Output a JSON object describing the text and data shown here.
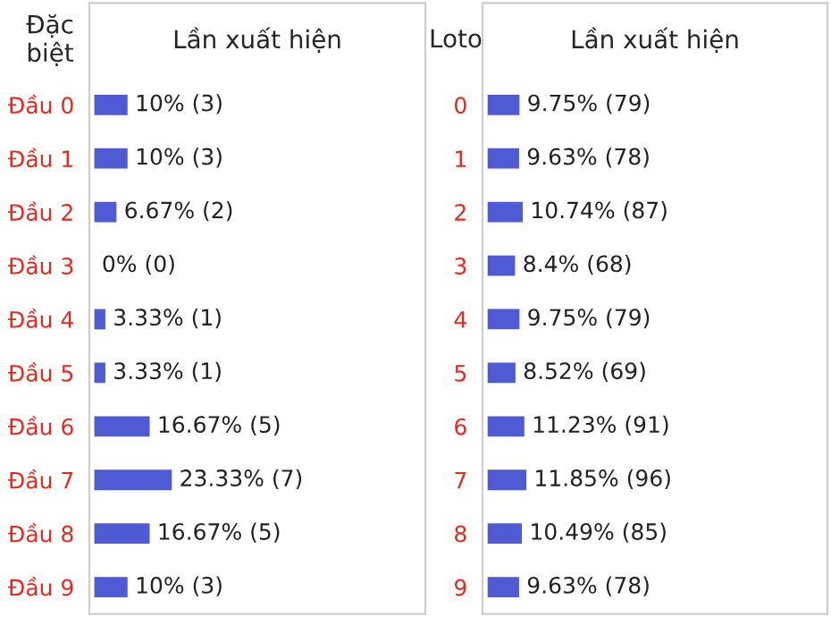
{
  "chart_data": [
    {
      "type": "bar",
      "orientation": "horizontal",
      "xlabel": "Lần xuất hiện",
      "ylabel": "Đặc biệt",
      "tick_labels": "y",
      "color": "#4f5bd5",
      "categories": [
        "Đầu 0",
        "Đầu 1",
        "Đầu 2",
        "Đầu 3",
        "Đầu 4",
        "Đầu 5",
        "Đầu 6",
        "Đầu 7",
        "Đầu 8",
        "Đầu 9"
      ],
      "values": [
        10,
        10,
        6.67,
        0,
        3.33,
        3.33,
        16.67,
        23.33,
        16.67,
        10
      ],
      "value_labels": [
        "10% (3)",
        "10% (3)",
        "6.67% (2)",
        "0% (0)",
        "3.33% (1)",
        "3.33% (1)",
        "16.67% (5)",
        "23.33% (7)",
        "16.67% (5)",
        "10% (3)"
      ]
    },
    {
      "type": "bar",
      "orientation": "horizontal",
      "xlabel": "Lần xuất hiện",
      "ylabel": "Loto",
      "tick_labels": "y",
      "color": "#4f5bd5",
      "categories": [
        "0",
        "1",
        "2",
        "3",
        "4",
        "5",
        "6",
        "7",
        "8",
        "9"
      ],
      "values": [
        9.75,
        9.63,
        10.74,
        8.4,
        9.75,
        8.52,
        11.23,
        11.85,
        10.49,
        9.63
      ],
      "value_labels": [
        "9.75% (79)",
        "9.63% (78)",
        "10.74% (87)",
        "8.4% (68)",
        "9.75% (79)",
        "8.52% (69)",
        "11.23% (91)",
        "11.85% (96)",
        "10.49% (85)",
        "9.63% (78)"
      ]
    }
  ]
}
